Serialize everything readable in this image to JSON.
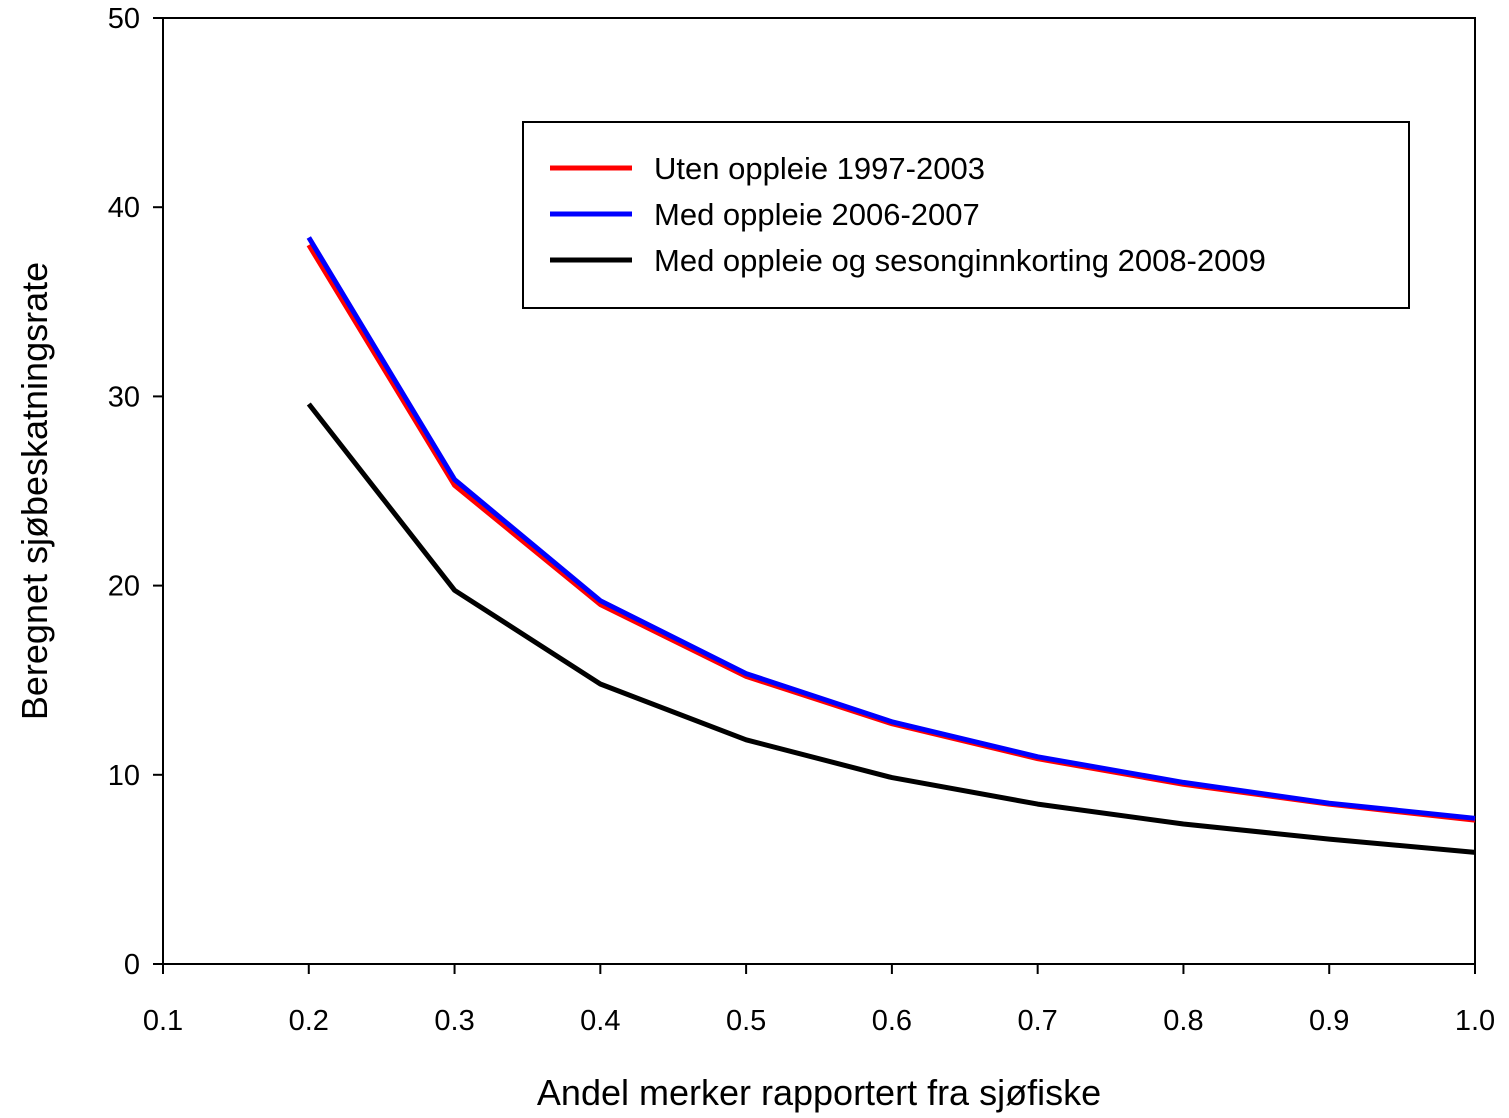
{
  "chart_data": {
    "type": "line",
    "title": "",
    "xlabel": "Andel merker rapportert fra sjøfiske",
    "ylabel": "Beregnet sjøbeskatningsrate",
    "xlim": [
      0.1,
      1.0
    ],
    "ylim": [
      0,
      50
    ],
    "x_ticks": [
      "0.1",
      "0.2",
      "0.3",
      "0.4",
      "0.5",
      "0.6",
      "0.7",
      "0.8",
      "0.9",
      "1.0"
    ],
    "y_ticks": [
      "0",
      "10",
      "20",
      "30",
      "40",
      "50"
    ],
    "x": [
      0.2,
      0.3,
      0.4,
      0.5,
      0.6,
      0.7,
      0.8,
      0.9,
      1.0
    ],
    "grid": false,
    "legend_position": "top-right",
    "series": [
      {
        "name": "Uten oppleie 1997-2003",
        "color": "#ff0000",
        "values": [
          38.0,
          25.3,
          19.0,
          15.2,
          12.7,
          10.85,
          9.5,
          8.45,
          7.6
        ]
      },
      {
        "name": "Med oppleie 2006-2007",
        "color": "#0000ff",
        "values": [
          38.4,
          25.6,
          19.2,
          15.35,
          12.8,
          10.95,
          9.6,
          8.5,
          7.7
        ]
      },
      {
        "name": "Med oppleie og sesonginnkorting 2008-2009",
        "color": "#000000",
        "values": [
          29.6,
          19.75,
          14.8,
          11.85,
          9.85,
          8.45,
          7.4,
          6.6,
          5.9
        ]
      }
    ]
  }
}
